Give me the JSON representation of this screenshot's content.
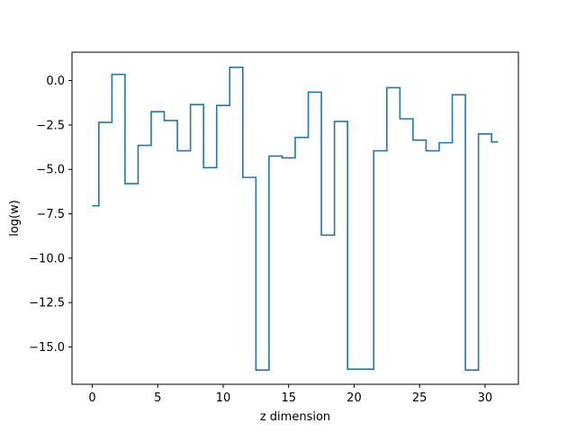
{
  "chart_data": {
    "type": "line",
    "drawstyle": "steps-mid",
    "title": "",
    "xlabel": "z dimension",
    "ylabel": "log(w)",
    "xlim": [
      -1.55,
      32.55
    ],
    "ylim": [
      -17.1,
      1.6
    ],
    "xticks": [
      0,
      5,
      10,
      15,
      20,
      25,
      30
    ],
    "xtick_labels": [
      "0",
      "5",
      "10",
      "15",
      "20",
      "25",
      "30"
    ],
    "yticks": [
      0.0,
      -2.5,
      -5.0,
      -7.5,
      -10.0,
      -12.5,
      -15.0
    ],
    "ytick_labels": [
      "0.0",
      "−2.5",
      "−5.0",
      "−7.5",
      "−10.0",
      "−12.5",
      "−15.0"
    ],
    "grid": false,
    "series": [
      {
        "color": "#1f77b4",
        "x": [
          0,
          1,
          2,
          3,
          4,
          5,
          6,
          7,
          8,
          9,
          10,
          11,
          12,
          13,
          14,
          15,
          16,
          17,
          18,
          19,
          20,
          21,
          22,
          23,
          24,
          25,
          26,
          27,
          28,
          29,
          30,
          31
        ],
        "y": [
          -7.05,
          -2.35,
          0.35,
          -5.8,
          -3.65,
          -1.75,
          -2.25,
          -3.95,
          -1.35,
          -4.9,
          -1.4,
          0.75,
          -5.45,
          -16.3,
          -4.25,
          -4.35,
          -3.2,
          -0.65,
          -8.7,
          -2.3,
          -16.25,
          -16.25,
          -3.95,
          -0.4,
          -2.15,
          -3.35,
          -3.95,
          -3.5,
          -0.8,
          -16.3,
          -3.0,
          -3.45
        ]
      }
    ]
  }
}
